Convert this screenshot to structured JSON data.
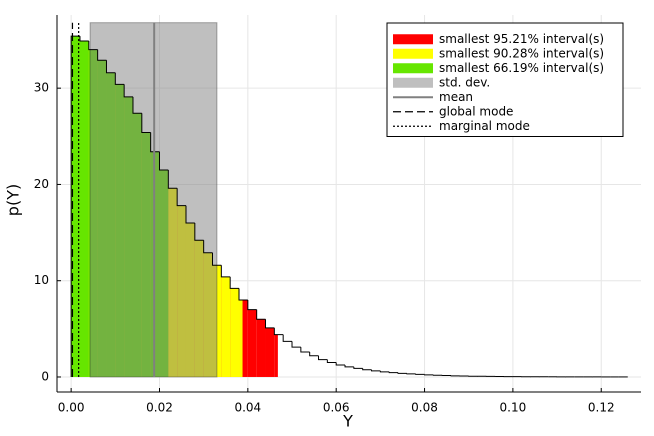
{
  "chart_data": {
    "type": "histogram",
    "xlabel": "Y",
    "ylabel": "p(Y)",
    "xlim": [
      -0.0032,
      0.129
    ],
    "ylim": [
      -1.56,
      37.6
    ],
    "xticks": [
      {
        "value": 0,
        "label": "0.00"
      },
      {
        "value": 0.02,
        "label": "0.02"
      },
      {
        "value": 0.04,
        "label": "0.04"
      },
      {
        "value": 0.06,
        "label": "0.06"
      },
      {
        "value": 0.08,
        "label": "0.08"
      },
      {
        "value": 0.1,
        "label": "0.10"
      },
      {
        "value": 0.12,
        "label": "0.12"
      }
    ],
    "yticks": [
      0,
      10,
      20,
      30
    ],
    "grid": true,
    "legend": "upper right",
    "bins": [
      0,
      0.002,
      0.004,
      0.006,
      0.008,
      0.01,
      0.012,
      0.014,
      0.016,
      0.018,
      0.02,
      0.022,
      0.024,
      0.026,
      0.028,
      0.03,
      0.032,
      0.034,
      0.036,
      0.038,
      0.04,
      0.042,
      0.044,
      0.046,
      0.048,
      0.05,
      0.052,
      0.054,
      0.056,
      0.058,
      0.06,
      0.062,
      0.064,
      0.066,
      0.068,
      0.07,
      0.072,
      0.074,
      0.076,
      0.078,
      0.08,
      0.082,
      0.084,
      0.086,
      0.088,
      0.09,
      0.092,
      0.094,
      0.096,
      0.098,
      0.1,
      0.102,
      0.104,
      0.106,
      0.108,
      0.11,
      0.112,
      0.114,
      0.116,
      0.118,
      0.12,
      0.122,
      0.124,
      0.126
    ],
    "values": [
      35.4,
      34.9,
      34.0,
      32.9,
      31.6,
      30.4,
      29.1,
      27.4,
      25.4,
      23.4,
      21.5,
      19.6,
      17.8,
      16.0,
      14.2,
      12.9,
      11.6,
      10.4,
      9.2,
      8.0,
      7.0,
      6.0,
      5.1,
      4.4,
      3.7,
      3.1,
      2.6,
      2.2,
      1.8,
      1.5,
      1.25,
      1.05,
      0.9,
      0.75,
      0.63,
      0.53,
      0.45,
      0.38,
      0.32,
      0.27,
      0.22,
      0.18,
      0.15,
      0.12,
      0.1,
      0.08,
      0.07,
      0.06,
      0.05,
      0.04,
      0.035,
      0.03,
      0.025,
      0.02,
      0.02,
      0.015,
      0.01,
      0.01,
      0.01,
      0.005,
      0.005,
      0.005,
      0.005
    ],
    "intervals": [
      {
        "name": "smallest 95.21% interval(s)",
        "color": "#ff0000",
        "range": [
          0,
          0.0468
        ]
      },
      {
        "name": "smallest 90.28% interval(s)",
        "color": "#ffff00",
        "range": [
          0,
          0.0388
        ]
      },
      {
        "name": "smallest 66.19% interval(s)",
        "color": "#66e600",
        "range": [
          0,
          0.022
        ]
      }
    ],
    "std_dev": {
      "name": "std. dev.",
      "color": "#808080",
      "range": [
        0.0043,
        0.033
      ],
      "top": 36.8
    },
    "lines": [
      {
        "name": "mean",
        "color": "#808080",
        "style": "solid",
        "value": 0.0188,
        "top": 36.8
      },
      {
        "name": "global mode",
        "color": "#000000",
        "style": "dashed",
        "value": 0.0003,
        "top": 36.8
      },
      {
        "name": "marginal mode",
        "color": "#000000",
        "style": "dotted",
        "value": 0.0017,
        "top": 36.8
      }
    ]
  }
}
